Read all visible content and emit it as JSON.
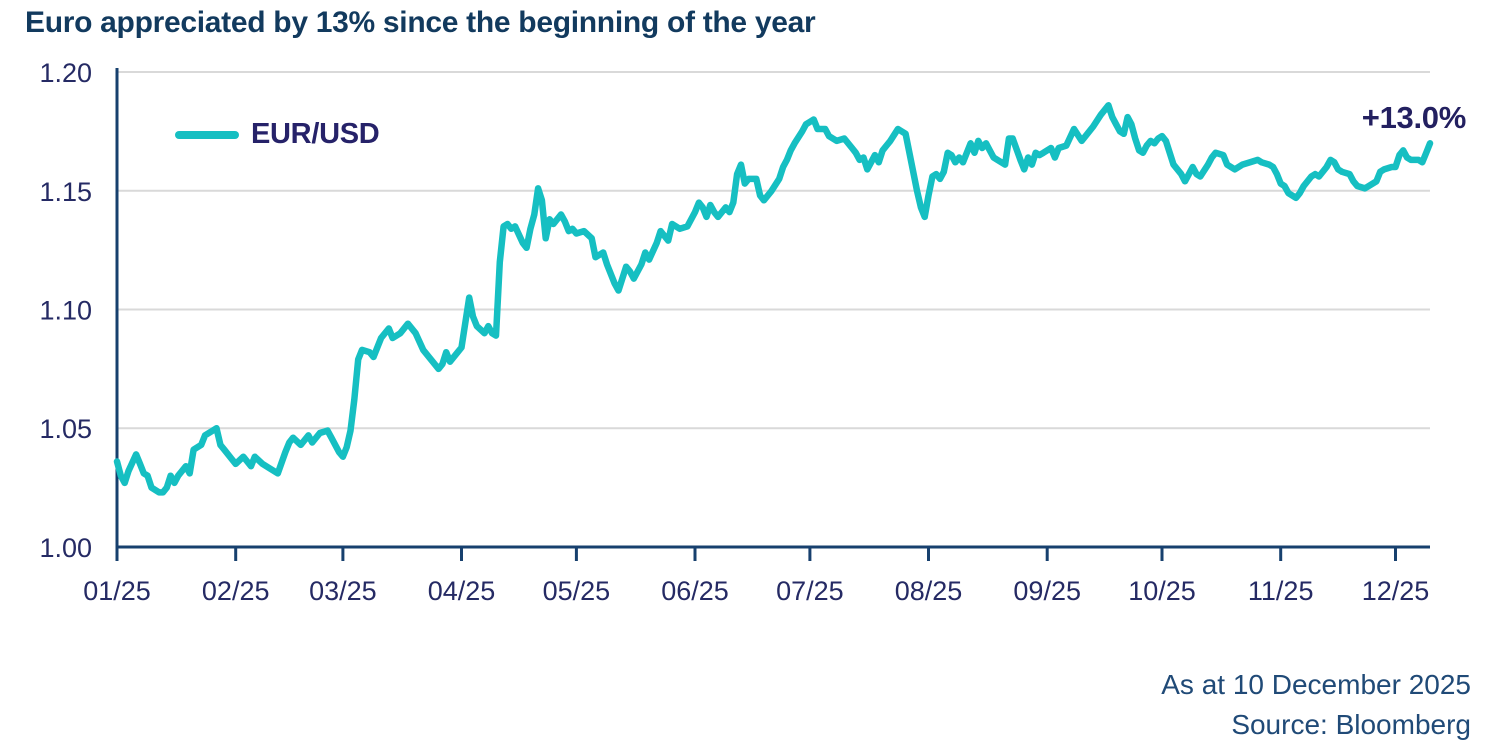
{
  "header": {
    "title": "Euro appreciated by 13% since the beginning of the year"
  },
  "footer": {
    "as_at": "As at 10 December 2025",
    "source": "Source: Bloomberg"
  },
  "colors": {
    "title": "#123a5e",
    "tick_label": "#252a64",
    "axis": "#17406e",
    "grid": "#d9d9d9",
    "series": "#16bfc2",
    "legend_text": "#262269",
    "annotation": "#232060",
    "footer_text": "#204a77",
    "background": "#ffffff"
  },
  "chart_data": {
    "type": "line",
    "title": "Euro appreciated by 13% since the beginning of the year",
    "xlabel": "",
    "ylabel": "",
    "ylim": [
      1.0,
      1.2
    ],
    "yticks": [
      "1.00",
      "1.05",
      "1.10",
      "1.15",
      "1.20"
    ],
    "grid": "horizontal",
    "legend": {
      "label": "EUR/USD",
      "position": "top-left"
    },
    "annotation": "+13.0%",
    "x_axis": {
      "unit": "day-of-year-2025",
      "range_days": [
        1,
        344
      ],
      "ticks": [
        {
          "day": 1,
          "label": "01/25"
        },
        {
          "day": 32,
          "label": "02/25"
        },
        {
          "day": 60,
          "label": "03/25"
        },
        {
          "day": 91,
          "label": "04/25"
        },
        {
          "day": 121,
          "label": "05/25"
        },
        {
          "day": 152,
          "label": "06/25"
        },
        {
          "day": 182,
          "label": "07/25"
        },
        {
          "day": 213,
          "label": "08/25"
        },
        {
          "day": 244,
          "label": "09/25"
        },
        {
          "day": 274,
          "label": "10/25"
        },
        {
          "day": 305,
          "label": "11/25"
        },
        {
          "day": 335,
          "label": "12/25"
        }
      ]
    },
    "series": [
      {
        "name": "EUR/USD",
        "color": "#16bfc2",
        "points": [
          [
            1,
            1.036
          ],
          [
            2,
            1.03
          ],
          [
            3,
            1.027
          ],
          [
            4,
            1.032
          ],
          [
            6,
            1.039
          ],
          [
            7,
            1.035
          ],
          [
            8,
            1.031
          ],
          [
            9,
            1.03
          ],
          [
            10,
            1.025
          ],
          [
            12,
            1.023
          ],
          [
            13,
            1.023
          ],
          [
            14,
            1.025
          ],
          [
            15,
            1.03
          ],
          [
            16,
            1.027
          ],
          [
            17,
            1.03
          ],
          [
            19,
            1.034
          ],
          [
            20,
            1.031
          ],
          [
            21,
            1.041
          ],
          [
            23,
            1.043
          ],
          [
            24,
            1.047
          ],
          [
            26,
            1.049
          ],
          [
            27,
            1.05
          ],
          [
            28,
            1.043
          ],
          [
            29,
            1.041
          ],
          [
            31,
            1.037
          ],
          [
            32,
            1.035
          ],
          [
            34,
            1.038
          ],
          [
            35,
            1.036
          ],
          [
            36,
            1.034
          ],
          [
            37,
            1.038
          ],
          [
            39,
            1.035
          ],
          [
            41,
            1.033
          ],
          [
            43,
            1.031
          ],
          [
            45,
            1.04
          ],
          [
            46,
            1.044
          ],
          [
            47,
            1.046
          ],
          [
            49,
            1.043
          ],
          [
            51,
            1.047
          ],
          [
            52,
            1.044
          ],
          [
            54,
            1.048
          ],
          [
            56,
            1.049
          ],
          [
            57,
            1.046
          ],
          [
            59,
            1.04
          ],
          [
            60,
            1.038
          ],
          [
            61,
            1.042
          ],
          [
            62,
            1.049
          ],
          [
            63,
            1.062
          ],
          [
            64,
            1.079
          ],
          [
            65,
            1.083
          ],
          [
            67,
            1.082
          ],
          [
            68,
            1.08
          ],
          [
            70,
            1.088
          ],
          [
            72,
            1.092
          ],
          [
            73,
            1.088
          ],
          [
            75,
            1.09
          ],
          [
            77,
            1.094
          ],
          [
            79,
            1.09
          ],
          [
            81,
            1.083
          ],
          [
            83,
            1.079
          ],
          [
            85,
            1.075
          ],
          [
            86,
            1.077
          ],
          [
            87,
            1.082
          ],
          [
            88,
            1.078
          ],
          [
            90,
            1.082
          ],
          [
            91,
            1.084
          ],
          [
            93,
            1.105
          ],
          [
            94,
            1.097
          ],
          [
            95,
            1.093
          ],
          [
            97,
            1.09
          ],
          [
            98,
            1.093
          ],
          [
            99,
            1.09
          ],
          [
            100,
            1.089
          ],
          [
            101,
            1.12
          ],
          [
            102,
            1.135
          ],
          [
            103,
            1.136
          ],
          [
            104,
            1.134
          ],
          [
            105,
            1.135
          ],
          [
            107,
            1.128
          ],
          [
            108,
            1.126
          ],
          [
            109,
            1.134
          ],
          [
            110,
            1.14
          ],
          [
            111,
            1.151
          ],
          [
            112,
            1.146
          ],
          [
            113,
            1.13
          ],
          [
            114,
            1.138
          ],
          [
            115,
            1.136
          ],
          [
            117,
            1.14
          ],
          [
            118,
            1.137
          ],
          [
            119,
            1.133
          ],
          [
            120,
            1.134
          ],
          [
            121,
            1.132
          ],
          [
            123,
            1.133
          ],
          [
            125,
            1.13
          ],
          [
            126,
            1.122
          ],
          [
            128,
            1.124
          ],
          [
            129,
            1.119
          ],
          [
            131,
            1.111
          ],
          [
            132,
            1.108
          ],
          [
            134,
            1.118
          ],
          [
            135,
            1.116
          ],
          [
            136,
            1.113
          ],
          [
            138,
            1.119
          ],
          [
            139,
            1.124
          ],
          [
            140,
            1.121
          ],
          [
            142,
            1.128
          ],
          [
            143,
            1.133
          ],
          [
            145,
            1.129
          ],
          [
            146,
            1.136
          ],
          [
            148,
            1.134
          ],
          [
            150,
            1.135
          ],
          [
            152,
            1.141
          ],
          [
            153,
            1.145
          ],
          [
            154,
            1.143
          ],
          [
            155,
            1.139
          ],
          [
            156,
            1.144
          ],
          [
            157,
            1.141
          ],
          [
            158,
            1.139
          ],
          [
            160,
            1.143
          ],
          [
            161,
            1.141
          ],
          [
            162,
            1.145
          ],
          [
            163,
            1.157
          ],
          [
            164,
            1.161
          ],
          [
            165,
            1.153
          ],
          [
            166,
            1.155
          ],
          [
            168,
            1.155
          ],
          [
            169,
            1.148
          ],
          [
            170,
            1.146
          ],
          [
            172,
            1.15
          ],
          [
            174,
            1.155
          ],
          [
            175,
            1.16
          ],
          [
            176,
            1.163
          ],
          [
            177,
            1.167
          ],
          [
            178,
            1.17
          ],
          [
            180,
            1.175
          ],
          [
            181,
            1.178
          ],
          [
            182,
            1.179
          ],
          [
            183,
            1.18
          ],
          [
            184,
            1.176
          ],
          [
            186,
            1.176
          ],
          [
            187,
            1.173
          ],
          [
            189,
            1.171
          ],
          [
            191,
            1.172
          ],
          [
            193,
            1.168
          ],
          [
            194,
            1.166
          ],
          [
            195,
            1.163
          ],
          [
            196,
            1.164
          ],
          [
            197,
            1.159
          ],
          [
            198,
            1.162
          ],
          [
            199,
            1.165
          ],
          [
            200,
            1.162
          ],
          [
            201,
            1.167
          ],
          [
            203,
            1.171
          ],
          [
            205,
            1.176
          ],
          [
            206,
            1.175
          ],
          [
            207,
            1.174
          ],
          [
            208,
            1.166
          ],
          [
            209,
            1.158
          ],
          [
            210,
            1.15
          ],
          [
            211,
            1.143
          ],
          [
            212,
            1.139
          ],
          [
            213,
            1.148
          ],
          [
            214,
            1.156
          ],
          [
            215,
            1.157
          ],
          [
            216,
            1.155
          ],
          [
            217,
            1.158
          ],
          [
            218,
            1.166
          ],
          [
            219,
            1.165
          ],
          [
            220,
            1.162
          ],
          [
            221,
            1.164
          ],
          [
            222,
            1.162
          ],
          [
            224,
            1.17
          ],
          [
            225,
            1.166
          ],
          [
            226,
            1.171
          ],
          [
            227,
            1.168
          ],
          [
            228,
            1.17
          ],
          [
            230,
            1.164
          ],
          [
            231,
            1.163
          ],
          [
            233,
            1.161
          ],
          [
            234,
            1.172
          ],
          [
            235,
            1.172
          ],
          [
            237,
            1.163
          ],
          [
            238,
            1.159
          ],
          [
            239,
            1.164
          ],
          [
            240,
            1.161
          ],
          [
            241,
            1.166
          ],
          [
            242,
            1.165
          ],
          [
            243,
            1.166
          ],
          [
            245,
            1.168
          ],
          [
            246,
            1.164
          ],
          [
            247,
            1.168
          ],
          [
            249,
            1.169
          ],
          [
            251,
            1.176
          ],
          [
            253,
            1.171
          ],
          [
            254,
            1.173
          ],
          [
            256,
            1.177
          ],
          [
            258,
            1.182
          ],
          [
            260,
            1.186
          ],
          [
            261,
            1.181
          ],
          [
            262,
            1.178
          ],
          [
            263,
            1.175
          ],
          [
            264,
            1.174
          ],
          [
            265,
            1.181
          ],
          [
            266,
            1.178
          ],
          [
            267,
            1.172
          ],
          [
            268,
            1.167
          ],
          [
            269,
            1.166
          ],
          [
            270,
            1.169
          ],
          [
            271,
            1.171
          ],
          [
            272,
            1.17
          ],
          [
            273,
            1.172
          ],
          [
            274,
            1.173
          ],
          [
            275,
            1.171
          ],
          [
            276,
            1.166
          ],
          [
            277,
            1.161
          ],
          [
            279,
            1.157
          ],
          [
            280,
            1.154
          ],
          [
            282,
            1.16
          ],
          [
            283,
            1.157
          ],
          [
            284,
            1.156
          ],
          [
            286,
            1.161
          ],
          [
            287,
            1.164
          ],
          [
            288,
            1.166
          ],
          [
            290,
            1.165
          ],
          [
            291,
            1.161
          ],
          [
            293,
            1.159
          ],
          [
            295,
            1.161
          ],
          [
            297,
            1.162
          ],
          [
            299,
            1.163
          ],
          [
            300,
            1.162
          ],
          [
            302,
            1.161
          ],
          [
            303,
            1.16
          ],
          [
            304,
            1.157
          ],
          [
            305,
            1.153
          ],
          [
            306,
            1.152
          ],
          [
            307,
            1.149
          ],
          [
            309,
            1.147
          ],
          [
            310,
            1.149
          ],
          [
            311,
            1.152
          ],
          [
            313,
            1.156
          ],
          [
            314,
            1.157
          ],
          [
            315,
            1.156
          ],
          [
            317,
            1.16
          ],
          [
            318,
            1.163
          ],
          [
            319,
            1.162
          ],
          [
            320,
            1.159
          ],
          [
            321,
            1.158
          ],
          [
            323,
            1.157
          ],
          [
            324,
            1.154
          ],
          [
            325,
            1.152
          ],
          [
            327,
            1.151
          ],
          [
            328,
            1.152
          ],
          [
            330,
            1.154
          ],
          [
            331,
            1.158
          ],
          [
            332,
            1.159
          ],
          [
            334,
            1.16
          ],
          [
            335,
            1.16
          ],
          [
            336,
            1.165
          ],
          [
            337,
            1.167
          ],
          [
            338,
            1.164
          ],
          [
            339,
            1.163
          ],
          [
            340,
            1.163
          ],
          [
            341,
            1.163
          ],
          [
            342,
            1.162
          ],
          [
            343,
            1.166
          ],
          [
            344,
            1.17
          ]
        ]
      }
    ]
  }
}
